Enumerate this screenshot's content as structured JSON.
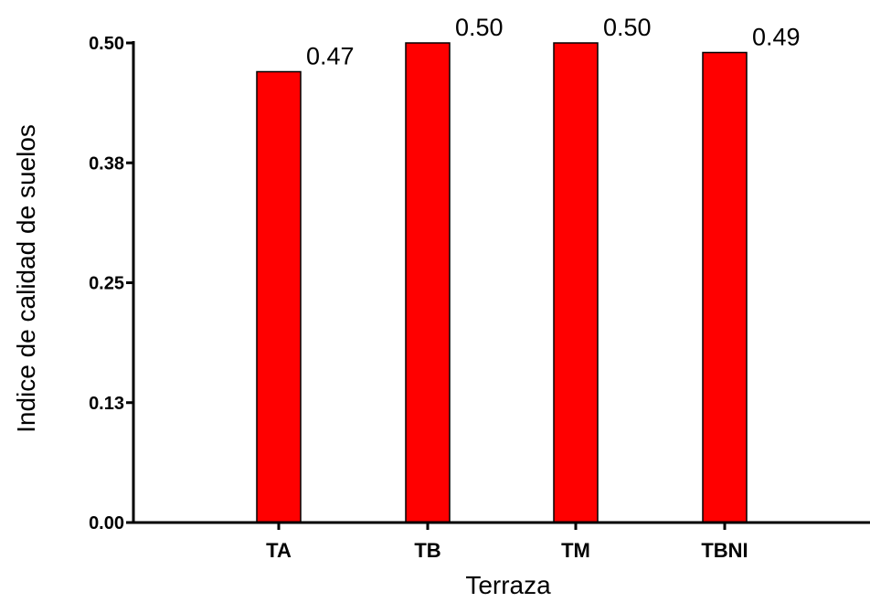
{
  "chart_data": {
    "type": "bar",
    "categories": [
      "TA",
      "TB",
      "TM",
      "TBNI"
    ],
    "values": [
      0.47,
      0.5,
      0.5,
      0.49
    ],
    "data_labels": [
      "0.47",
      "0.50",
      "0.50",
      "0.49"
    ],
    "title": "",
    "xlabel": "Terraza",
    "ylabel": "Indice de calidad de suelos",
    "ylim": [
      0,
      0.5
    ],
    "yticks": [
      0.0,
      0.125,
      0.25,
      0.375,
      0.5
    ],
    "ytick_labels": [
      "0.00",
      "0.13",
      "0.25",
      "0.38",
      "0.50"
    ],
    "bar_color": "#ff0000",
    "bar_edge_color": "#000000",
    "grid": false,
    "legend": "none"
  }
}
